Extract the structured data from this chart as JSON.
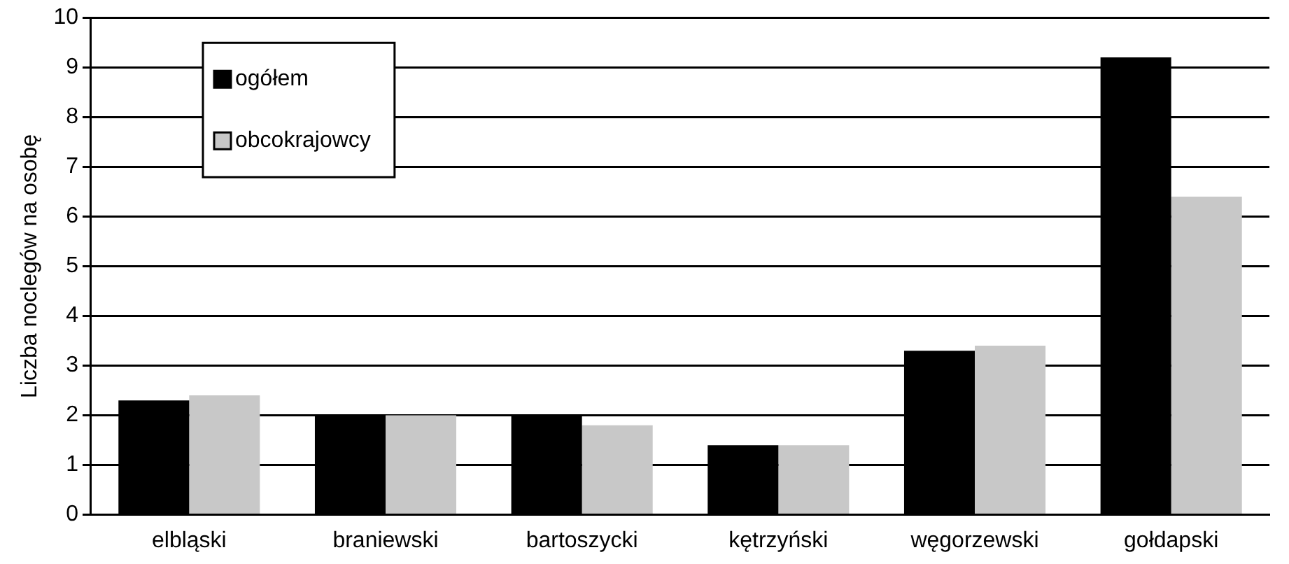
{
  "chart_data": {
    "type": "bar",
    "ylabel": "Liczba noclegów na osobę",
    "categories": [
      "elbląski",
      "braniewski",
      "bartoszycki",
      "kętrzyński",
      "węgorzewski",
      "gołdapski"
    ],
    "series": [
      {
        "name": "ogółem",
        "color": "#000000",
        "values": [
          2.3,
          2.0,
          2.0,
          1.4,
          3.3,
          9.2
        ]
      },
      {
        "name": "obcokrajowcy",
        "color": "#c8c8c8",
        "values": [
          2.4,
          2.0,
          1.8,
          1.4,
          3.4,
          6.4
        ]
      }
    ],
    "ylim": [
      0,
      10
    ],
    "yticks": [
      0,
      1,
      2,
      3,
      4,
      5,
      6,
      7,
      8,
      9,
      10
    ],
    "grid": "y",
    "legend": "top left"
  }
}
